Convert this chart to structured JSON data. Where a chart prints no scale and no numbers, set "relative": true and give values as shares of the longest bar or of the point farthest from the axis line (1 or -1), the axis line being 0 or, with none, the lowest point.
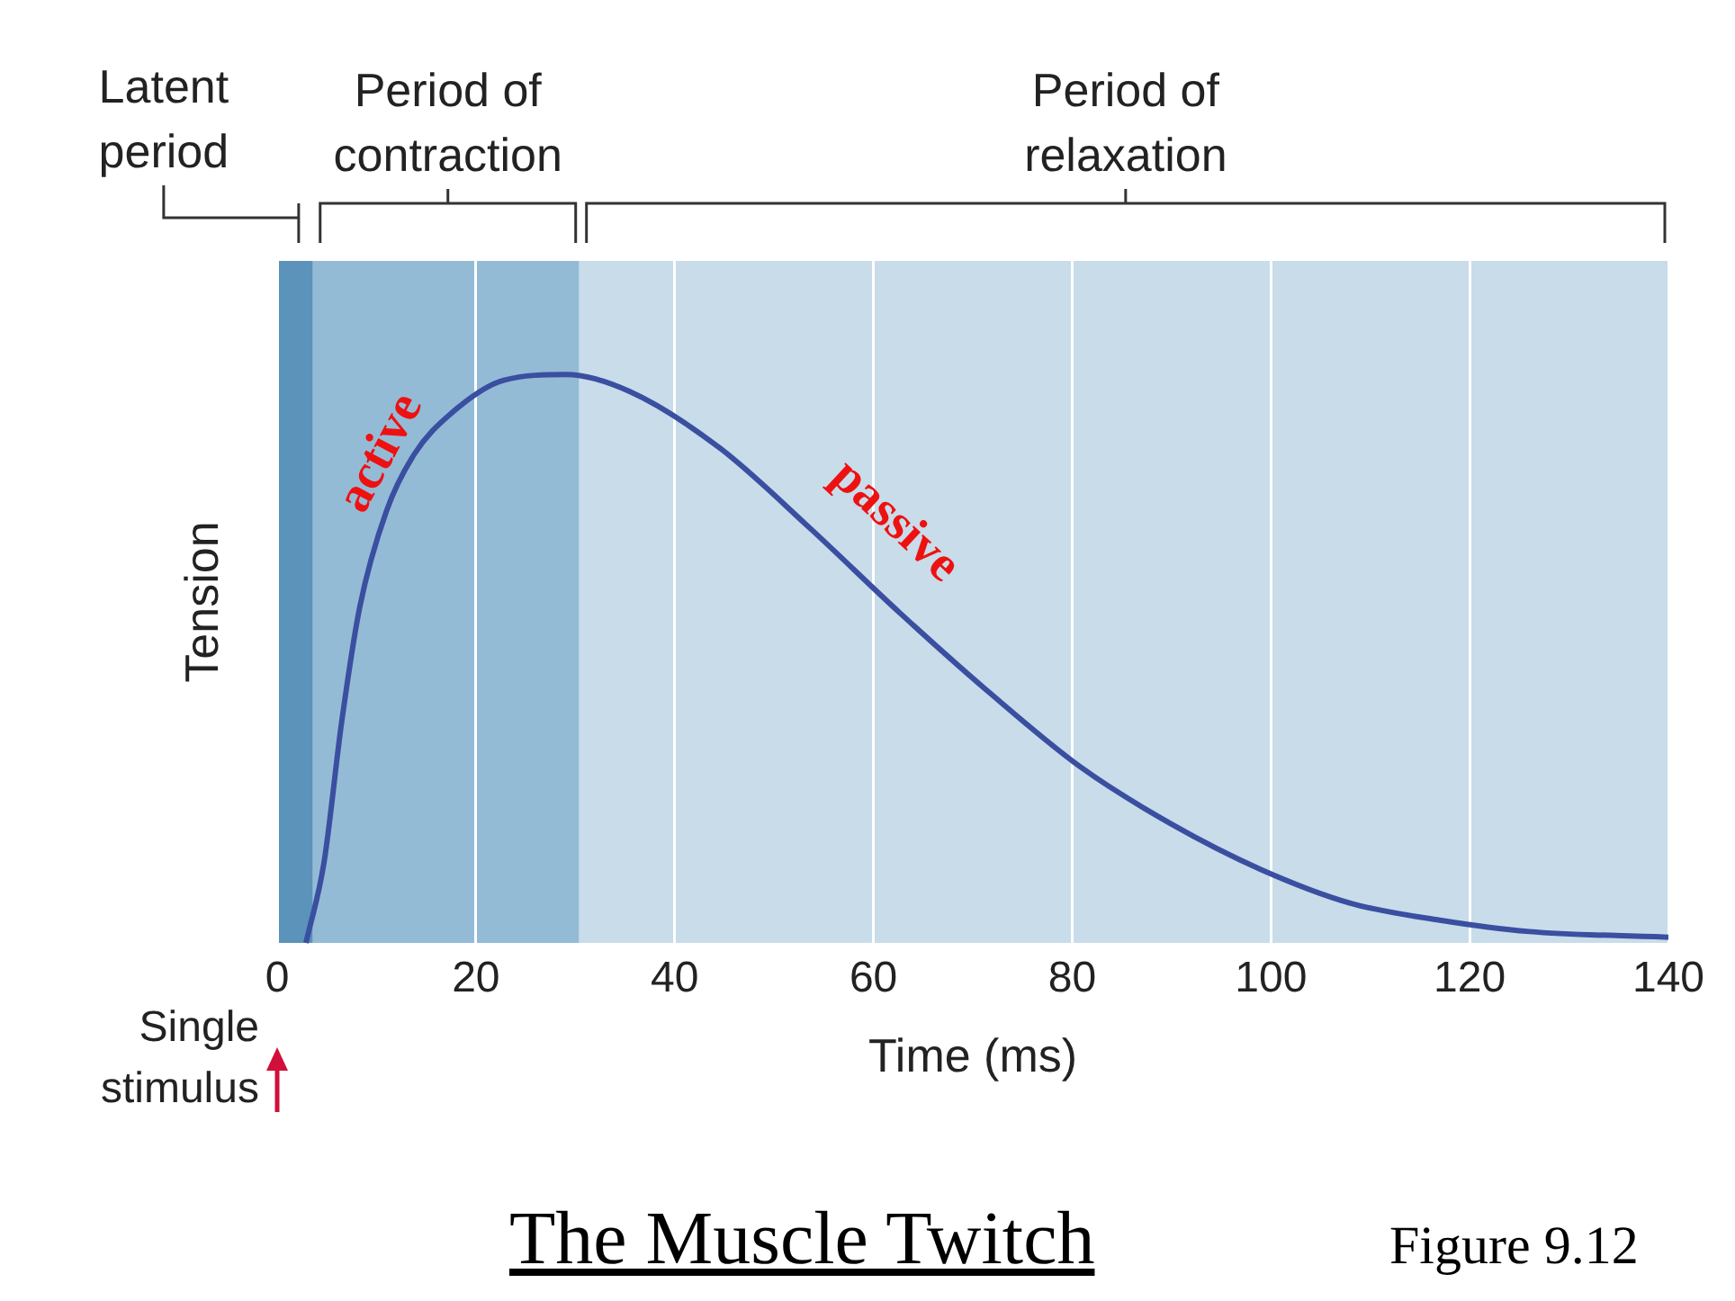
{
  "chart_data": {
    "type": "line",
    "title": "The Muscle Twitch",
    "xlabel": "Time (ms)",
    "ylabel": "Tension",
    "relative": true,
    "xlim": [
      0,
      140
    ],
    "xticks": [
      0,
      20,
      40,
      60,
      80,
      100,
      120,
      140
    ],
    "grid": "x",
    "legend": false,
    "marker": "none",
    "line_style": "solid",
    "series": [
      {
        "color": "#3a4fa0",
        "x": [
          2.9,
          4.7,
          6.5,
          8.3,
          11,
          13.8,
          17.4,
          22.8,
          29.1,
          35.5,
          44.6,
          53.6,
          62.7,
          71.7,
          80.8,
          89.9,
          98.9,
          108,
          117,
          126,
          140
        ],
        "values": [
          0,
          0.14,
          0.39,
          0.59,
          0.76,
          0.86,
          0.93,
          0.99,
          1,
          0.97,
          0.87,
          0.73,
          0.58,
          0.44,
          0.31,
          0.21,
          0.13,
          0.07,
          0.04,
          0.02,
          0.01
        ]
      }
    ],
    "bands": [
      {
        "axis": "x",
        "from": 0,
        "to": 3.6,
        "label": "Latent\nperiod",
        "color": "#5b93bb"
      },
      {
        "axis": "x",
        "from": 3.6,
        "to": 30.4,
        "label": "Period of\ncontraction",
        "color": "#94bbd6"
      },
      {
        "axis": "x",
        "from": 30.4,
        "to": 140,
        "label": "Period of\nrelaxation",
        "color": "#c8dcea"
      }
    ],
    "annotations": [
      "active",
      "passive",
      "Single\nstimulus",
      "Figure 9.12"
    ]
  }
}
